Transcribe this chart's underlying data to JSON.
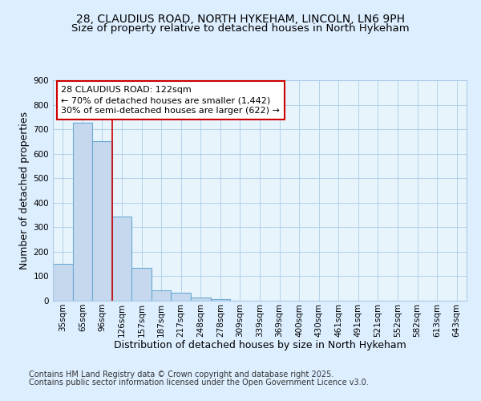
{
  "title_line1": "28, CLAUDIUS ROAD, NORTH HYKEHAM, LINCOLN, LN6 9PH",
  "title_line2": "Size of property relative to detached houses in North Hykeham",
  "xlabel": "Distribution of detached houses by size in North Hykeham",
  "ylabel": "Number of detached properties",
  "categories": [
    "35sqm",
    "65sqm",
    "96sqm",
    "126sqm",
    "157sqm",
    "187sqm",
    "217sqm",
    "248sqm",
    "278sqm",
    "309sqm",
    "339sqm",
    "369sqm",
    "400sqm",
    "430sqm",
    "461sqm",
    "491sqm",
    "521sqm",
    "552sqm",
    "582sqm",
    "613sqm",
    "643sqm"
  ],
  "values": [
    150,
    725,
    650,
    345,
    133,
    42,
    32,
    12,
    7,
    0,
    0,
    0,
    0,
    0,
    0,
    0,
    0,
    0,
    0,
    0,
    0
  ],
  "bar_color": "#c5d8ee",
  "bar_edge_color": "#6aaad4",
  "red_line_x": 2.5,
  "annotation_text": "28 CLAUDIUS ROAD: 122sqm\n← 70% of detached houses are smaller (1,442)\n30% of semi-detached houses are larger (622) →",
  "annotation_box_color": "white",
  "annotation_box_edge_color": "#cc0000",
  "ylim": [
    0,
    900
  ],
  "yticks": [
    0,
    100,
    200,
    300,
    400,
    500,
    600,
    700,
    800,
    900
  ],
  "bg_color": "#ddeeff",
  "plot_bg_color": "#e8f4fc",
  "grid_color": "#aacce8",
  "footer_line1": "Contains HM Land Registry data © Crown copyright and database right 2025.",
  "footer_line2": "Contains public sector information licensed under the Open Government Licence v3.0.",
  "title_fontsize": 10,
  "subtitle_fontsize": 9.5,
  "axis_label_fontsize": 9,
  "tick_fontsize": 7.5,
  "footer_fontsize": 7,
  "annotation_fontsize": 8
}
